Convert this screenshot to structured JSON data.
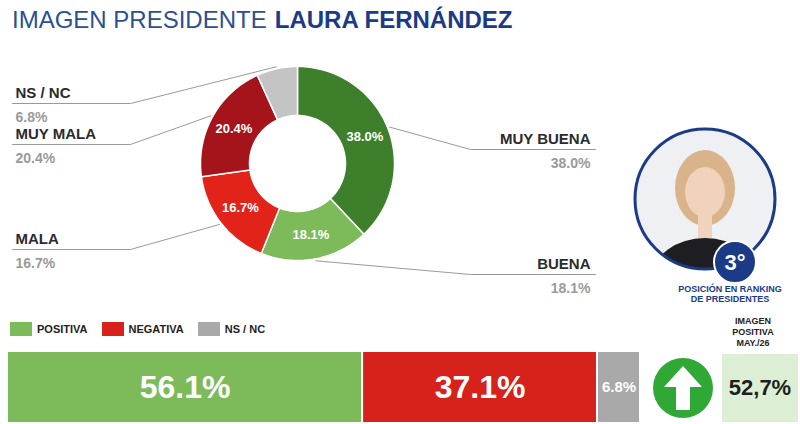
{
  "chart_data": [
    {
      "type": "pie",
      "title": "IMAGEN PRESIDENTE",
      "subtitle": "LAURA FERNÁNDEZ",
      "categories": [
        "MUY BUENA",
        "BUENA",
        "MALA",
        "MUY MALA",
        "NS / NC"
      ],
      "values": [
        38.0,
        18.1,
        16.7,
        20.4,
        6.8
      ],
      "value_labels": [
        "38.0%",
        "18.1%",
        "16.7%",
        "20.4%",
        "6.8%"
      ],
      "colors": [
        "#3d7f2a",
        "#7cba5a",
        "#e2231a",
        "#a5131b",
        "#c4c4c4"
      ],
      "data_labels": true
    },
    {
      "type": "bar",
      "orientation": "horizontal",
      "stacked": true,
      "series": [
        {
          "name": "POSITIVA",
          "color": "#7dbb5a",
          "values": [
            56.1
          ],
          "value_labels": [
            "56.1%"
          ]
        },
        {
          "name": "NEGATIVA",
          "color": "#d7211b",
          "values": [
            37.1
          ],
          "value_labels": [
            "37.1%"
          ]
        },
        {
          "name": "NS / NC",
          "color": "#a9a9a9",
          "values": [
            6.8
          ],
          "value_labels": [
            "6.8%"
          ]
        }
      ],
      "xlim": [
        0,
        100
      ],
      "tick_labels": false,
      "legend": "top-left",
      "data_labels": true
    }
  ],
  "ranking": {
    "label": "3°",
    "caption": "POSICIÓN EN RANKING DE PRESIDENTES"
  },
  "previous": {
    "title": "IMAGEN POSITIVA MAY./26",
    "value": 52.7,
    "value_label": "52,7%"
  }
}
